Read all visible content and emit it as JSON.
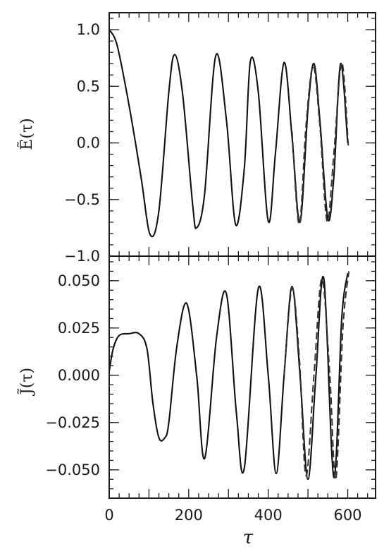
{
  "chart_data": [
    {
      "type": "line",
      "title": "",
      "xlabel": "",
      "ylabel": "Ẽ(τ)",
      "xlim": [
        0,
        670
      ],
      "ylim": [
        -1.0,
        1.15
      ],
      "xticks": [
        0,
        200,
        400,
        600
      ],
      "yticks": [
        1.0,
        0.5,
        0.0,
        -0.5,
        -1.0
      ],
      "ytick_labels": [
        "1.0",
        "0.5",
        "0.0",
        "−0.5",
        "−1.0"
      ],
      "series": [
        {
          "style": "solid",
          "x": [
            0,
            20,
            50,
            80,
            103,
            125,
            150,
            165,
            185,
            210,
            220,
            240,
            268,
            295,
            318,
            340,
            355,
            375,
            400,
            418,
            440,
            460,
            480,
            500,
            515,
            530,
            550,
            565,
            582,
            600
          ],
          "y": [
            1.0,
            0.86,
            0.33,
            -0.3,
            -0.81,
            -0.6,
            0.45,
            0.78,
            0.42,
            -0.55,
            -0.75,
            -0.45,
            0.77,
            0.2,
            -0.72,
            -0.22,
            0.72,
            0.45,
            -0.69,
            -0.1,
            0.71,
            0.05,
            -0.7,
            0.3,
            0.7,
            0.2,
            -0.67,
            -0.3,
            0.7,
            0.0
          ]
        },
        {
          "style": "dashed",
          "x": [
            460,
            478,
            495,
            513,
            530,
            548,
            565,
            585,
            602
          ],
          "y": [
            0.1,
            -0.72,
            0.15,
            0.68,
            0.15,
            -0.69,
            -0.1,
            0.71,
            -0.05
          ]
        }
      ]
    },
    {
      "type": "line",
      "title": "",
      "xlabel": "τ",
      "ylabel": "J̃(τ)",
      "xlim": [
        0,
        670
      ],
      "ylim": [
        -0.065,
        0.063
      ],
      "xticks": [
        0,
        200,
        400,
        600
      ],
      "xtick_labels": [
        "0",
        "200",
        "400",
        "600"
      ],
      "yticks": [
        0.05,
        0.025,
        0.0,
        -0.025,
        -0.05
      ],
      "ytick_labels": [
        "0.050",
        "0.025",
        "0.000",
        "−0.025",
        "−0.050"
      ],
      "series": [
        {
          "style": "solid",
          "x": [
            0,
            10,
            25,
            50,
            75,
            95,
            110,
            125,
            140,
            150,
            170,
            195,
            220,
            240,
            270,
            295,
            320,
            340,
            375,
            400,
            420,
            440,
            460,
            480,
            500,
            520,
            540,
            565,
            585,
            600
          ],
          "y": [
            0.002,
            0.014,
            0.021,
            0.022,
            0.022,
            0.014,
            -0.015,
            -0.033,
            -0.033,
            -0.025,
            0.015,
            0.038,
            0.0,
            -0.044,
            0.02,
            0.043,
            -0.02,
            -0.049,
            0.046,
            0.0,
            -0.052,
            0.0,
            0.047,
            0.0,
            -0.055,
            0.0,
            0.051,
            -0.054,
            0.03,
            0.054
          ]
        },
        {
          "style": "dashed",
          "x": [
            440,
            460,
            478,
            495,
            515,
            535,
            555,
            570,
            588,
            603
          ],
          "y": [
            0.0,
            0.046,
            0.01,
            -0.053,
            0.0,
            0.051,
            0.0,
            -0.055,
            0.025,
            0.055
          ]
        }
      ]
    }
  ]
}
